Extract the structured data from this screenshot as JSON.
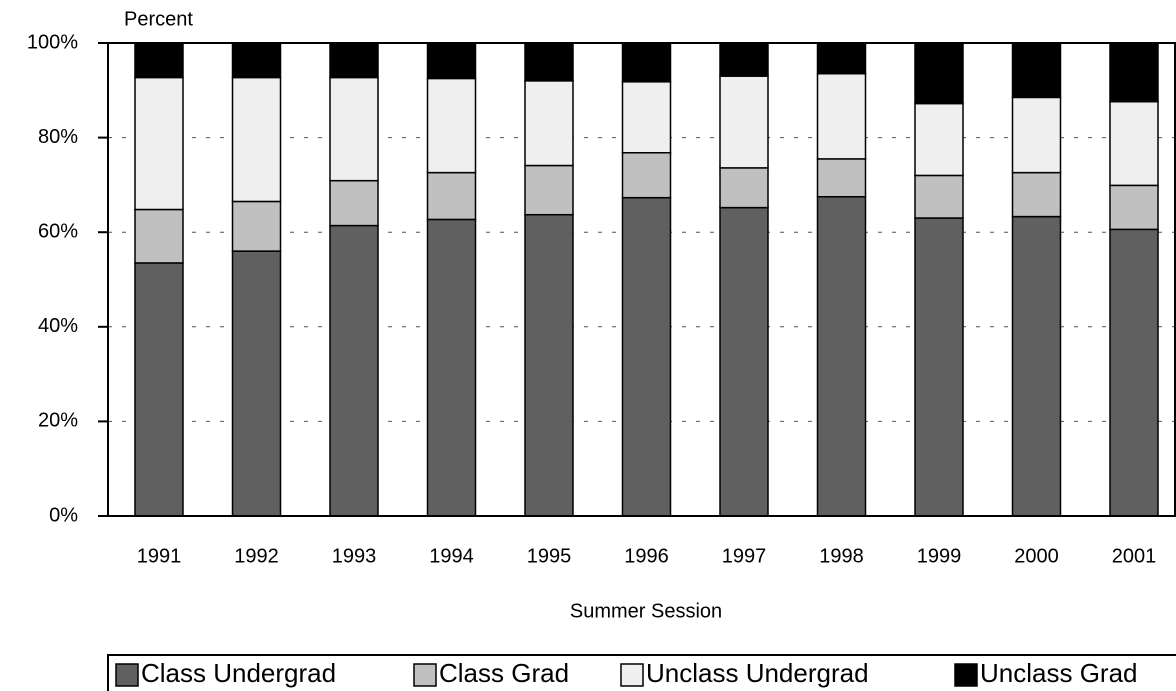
{
  "chart_data": {
    "type": "stacked-bar",
    "y_label": "Percent",
    "x_label": "Summer Session",
    "categories": [
      "1991",
      "1992",
      "1993",
      "1994",
      "1995",
      "1996",
      "1997",
      "1998",
      "1999",
      "2000",
      "2001"
    ],
    "series": [
      {
        "name": "Class Undergrad",
        "color": "#606060",
        "values": [
          53.5,
          56,
          61.4,
          62.7,
          63.7,
          67.3,
          65.2,
          67.5,
          63,
          63.3,
          60.6
        ]
      },
      {
        "name": "Class Grad",
        "color": "#c0c0c0",
        "values": [
          11.3,
          10.5,
          9.5,
          9.9,
          10.4,
          9.5,
          8.4,
          8,
          9,
          9.3,
          9.3
        ]
      },
      {
        "name": "Unclass Undergrad",
        "color": "#efefef",
        "values": [
          27.9,
          26.2,
          21.8,
          19.9,
          17.9,
          15,
          19.4,
          18,
          15.2,
          15.9,
          17.7
        ]
      },
      {
        "name": "Unclass Grad",
        "color": "#000000",
        "values": [
          7.3,
          7.3,
          7.3,
          7.5,
          8,
          8.2,
          7,
          6.5,
          12.8,
          11.5,
          12.4
        ]
      }
    ],
    "ylim": [
      0,
      100
    ],
    "yticks": [
      {
        "value": 0,
        "label": "0%"
      },
      {
        "value": 20,
        "label": "20%"
      },
      {
        "value": 40,
        "label": "40%"
      },
      {
        "value": 60,
        "label": "60%"
      },
      {
        "value": 80,
        "label": "80%"
      },
      {
        "value": 100,
        "label": "100%"
      }
    ],
    "grid": true
  }
}
